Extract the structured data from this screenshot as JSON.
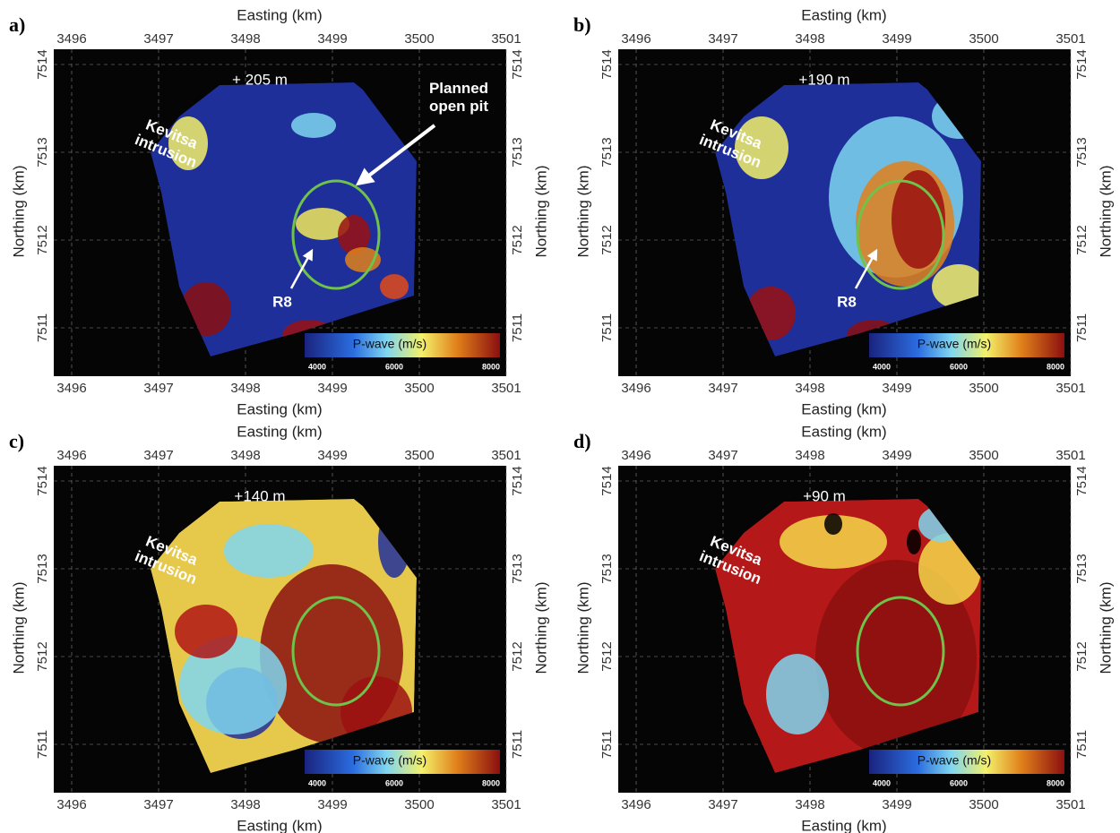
{
  "panels": [
    {
      "label": "a)",
      "top_axis_label": "Easting (km)",
      "bottom_axis_label": "Easting (km)",
      "left_axis_label": "Northing (km)",
      "right_axis_label": "Northing (km)",
      "easting_ticks": [
        "3496",
        "3497",
        "3498",
        "3499",
        "3500",
        "3501"
      ],
      "northing_ticks": [
        "7514",
        "7513",
        "7512",
        "7511"
      ],
      "depth": "+ 205 m",
      "intrusion_label": [
        "Kevitsa",
        "intrusion"
      ],
      "pit_label": [
        "Planned",
        "open pit"
      ],
      "marker_label": "R8",
      "colorbar": {
        "label": "P-wave (m/s)",
        "ticks": [
          "4000",
          "6000",
          "8000"
        ]
      }
    },
    {
      "label": "b)",
      "top_axis_label": "Easting (km)",
      "bottom_axis_label": "Easting (km)",
      "left_axis_label": "Northing (km)",
      "right_axis_label": "Northing (km)",
      "easting_ticks": [
        "3496",
        "3497",
        "3498",
        "3499",
        "3500",
        "3501"
      ],
      "northing_ticks": [
        "7514",
        "7513",
        "7512",
        "7511"
      ],
      "depth": "+190 m",
      "intrusion_label": [
        "Kevitsa",
        "intrusion"
      ],
      "marker_label": "R8",
      "colorbar": {
        "label": "P-wave (m/s)",
        "ticks": [
          "4000",
          "6000",
          "8000"
        ]
      }
    },
    {
      "label": "c)",
      "top_axis_label": "Easting (km)",
      "bottom_axis_label": "Easting (km)",
      "left_axis_label": "Northing (km)",
      "right_axis_label": "Northing (km)",
      "easting_ticks": [
        "3496",
        "3497",
        "3498",
        "3499",
        "3500",
        "3501"
      ],
      "northing_ticks": [
        "7514",
        "7513",
        "7512",
        "7511"
      ],
      "depth": "+140 m",
      "intrusion_label": [
        "Kevitsa",
        "intrusion"
      ],
      "colorbar": {
        "label": "P-wave (m/s)",
        "ticks": [
          "4000",
          "6000",
          "8000"
        ]
      }
    },
    {
      "label": "d)",
      "top_axis_label": "Easting (km)",
      "bottom_axis_label": "Easting (km)",
      "left_axis_label": "Northing (km)",
      "right_axis_label": "Northing (km)",
      "easting_ticks": [
        "3496",
        "3497",
        "3498",
        "3499",
        "3500",
        "3501"
      ],
      "northing_ticks": [
        "7514",
        "7513",
        "7512",
        "7511"
      ],
      "depth": "+90 m",
      "intrusion_label": [
        "Kevitsa",
        "intrusion"
      ],
      "colorbar": {
        "label": "P-wave (m/s)",
        "ticks": [
          "4000",
          "6000",
          "8000"
        ]
      }
    }
  ]
}
